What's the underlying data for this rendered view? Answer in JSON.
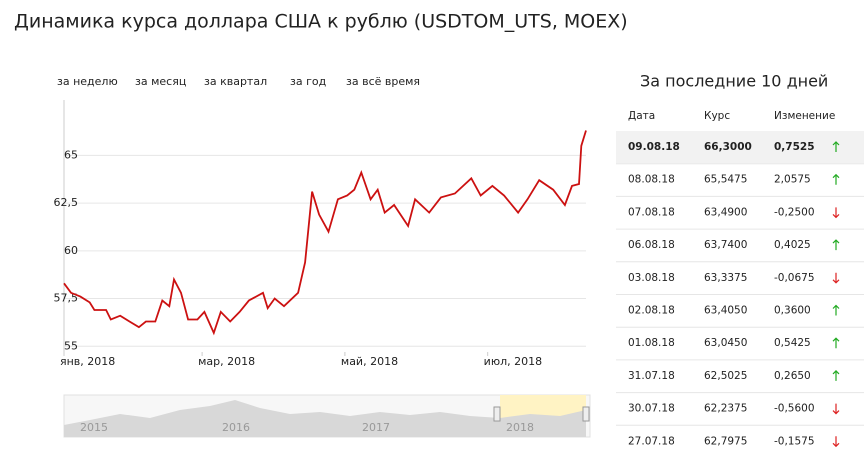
{
  "title": "Динамика курса доллара США к рублю (USDTOM_UTS, MOEX)",
  "tabs": [
    "за неделю",
    "за месяц",
    "за квартал",
    "за год",
    "за всё время"
  ],
  "chart_data": {
    "type": "line",
    "x": [
      0,
      3,
      7,
      11,
      13,
      18,
      20,
      24,
      28,
      32,
      35,
      39,
      42,
      45,
      47,
      50,
      53,
      57,
      60,
      64,
      67,
      71,
      75,
      79,
      85,
      87,
      90,
      94,
      100,
      103,
      106,
      109,
      113,
      117,
      121,
      124,
      127,
      131,
      134,
      137,
      141,
      147,
      150,
      156,
      161,
      167,
      174,
      178,
      183,
      188,
      194,
      198,
      203,
      209,
      214,
      217,
      220,
      221,
      223
    ],
    "series": [
      {
        "color": "#cc1111",
        "values": [
          58.3,
          57.8,
          57.6,
          57.3,
          56.9,
          56.9,
          56.4,
          56.6,
          56.3,
          56.0,
          56.3,
          56.3,
          57.4,
          57.1,
          58.5,
          57.8,
          56.4,
          56.4,
          56.8,
          55.7,
          56.8,
          56.3,
          56.8,
          57.4,
          57.8,
          57.0,
          57.5,
          57.1,
          57.8,
          59.4,
          63.1,
          61.9,
          61.0,
          62.7,
          62.9,
          63.2,
          64.1,
          62.7,
          63.2,
          62.0,
          62.4,
          61.3,
          62.7,
          62.0,
          62.8,
          63.0,
          63.8,
          62.9,
          63.4,
          62.9,
          62.0,
          62.7,
          63.7,
          63.2,
          62.4,
          63.4,
          63.5,
          65.5,
          66.3
        ]
      }
    ],
    "xlim": [
      0,
      223
    ],
    "xticks": [
      {
        "value": 0,
        "label": "янв, 2018"
      },
      {
        "value": 59,
        "label": "мар, 2018"
      },
      {
        "value": 120,
        "label": "май, 2018"
      },
      {
        "value": 181,
        "label": "июл, 2018"
      }
    ],
    "ylim": [
      54.7,
      67.9
    ],
    "yticks": [
      55,
      {
        "value": 57.5,
        "label": "57,5"
      },
      60,
      {
        "value": 62.5,
        "label": "62,5"
      },
      65
    ],
    "grid": true
  },
  "navigator": {
    "labels": [
      "2015",
      "2016",
      "2017",
      "2018"
    ]
  },
  "table": {
    "title": "За последние 10 дней",
    "header": [
      "Дата",
      "Курс",
      "Изменение"
    ],
    "rows": [
      [
        "09.08.18",
        "66,3000",
        "0,7525"
      ],
      [
        "08.08.18",
        "65,5475",
        "2,0575"
      ],
      [
        "07.08.18",
        "63,4900",
        "-0,2500"
      ],
      [
        "06.08.18",
        "63,7400",
        "0,4025"
      ],
      [
        "03.08.18",
        "63,3375",
        "-0,0675"
      ],
      [
        "02.08.18",
        "63,4050",
        "0,3600"
      ],
      [
        "01.08.18",
        "63,0450",
        "0,5425"
      ],
      [
        "31.07.18",
        "62,5025",
        "0,2650"
      ],
      [
        "30.07.18",
        "62,2375",
        "-0,5600"
      ],
      [
        "27.07.18",
        "62,7975",
        "-0,1575"
      ]
    ]
  }
}
